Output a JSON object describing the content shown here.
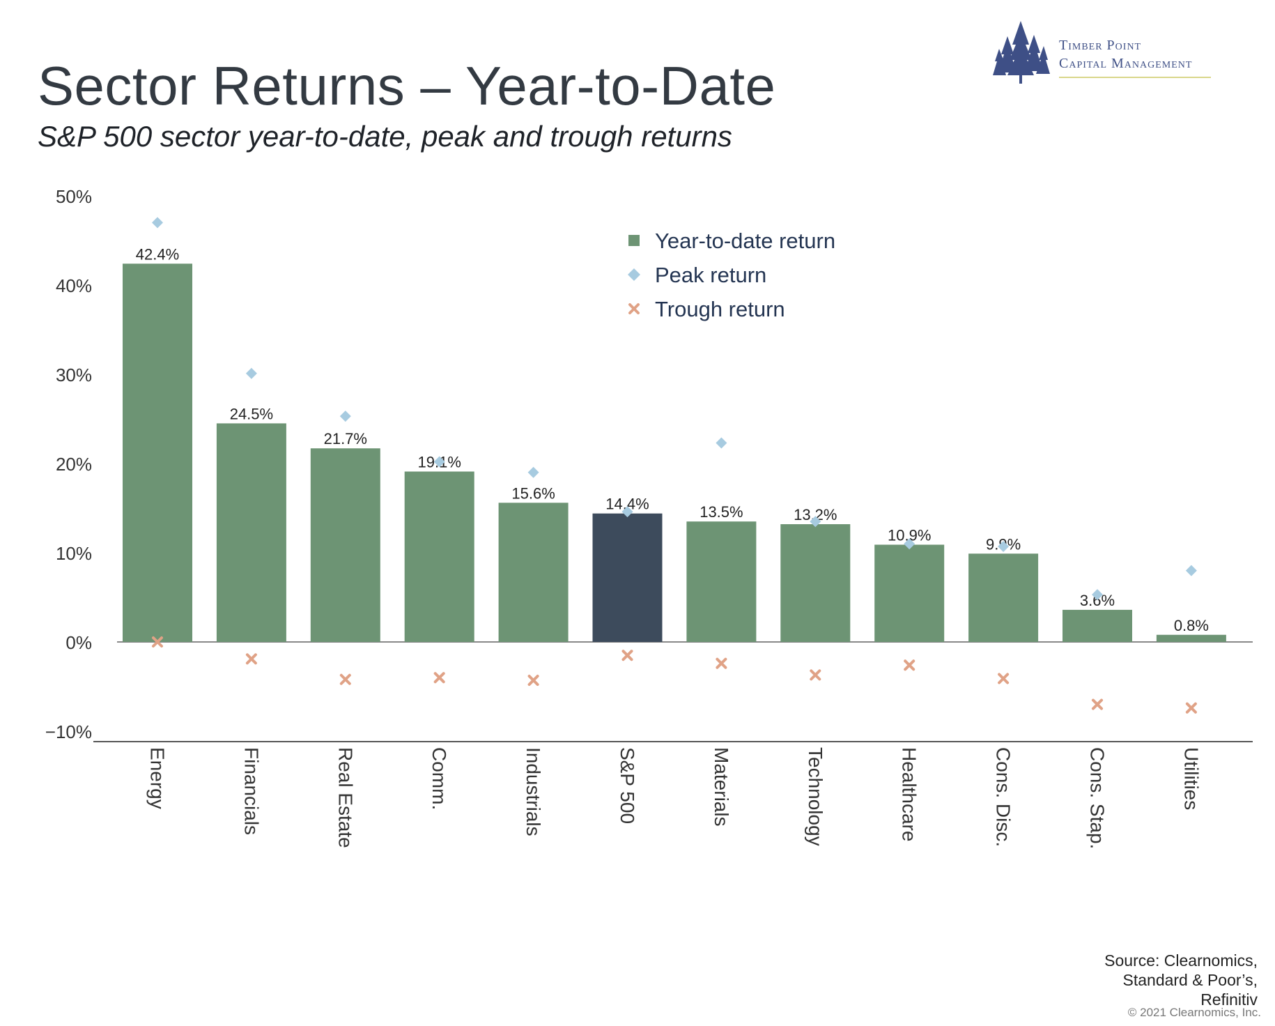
{
  "header": {
    "title": "Sector Returns – Year-to-Date",
    "subtitle": "S&P 500 sector year-to-date, peak and trough returns"
  },
  "logo": {
    "line1": "Timber Point",
    "line2": "Capital Management",
    "icon": "pine-trees-icon",
    "color": "#3e4f86"
  },
  "footer": {
    "source_line1": "Source: Clearnomics,",
    "source_line2": "Standard & Poor’s,",
    "source_line3": "Refinitiv",
    "copyright": "© 2021 Clearnomics, Inc."
  },
  "chart_data": {
    "type": "bar",
    "categories": [
      "Energy",
      "Financials",
      "Real Estate",
      "Comm.",
      "Industrials",
      "S&P 500",
      "Materials",
      "Technology",
      "Healthcare",
      "Cons. Disc.",
      "Cons. Stap.",
      "Utilities"
    ],
    "series": [
      {
        "name": "Year-to-date return",
        "type": "bar",
        "values": [
          42.4,
          24.5,
          21.7,
          19.1,
          15.6,
          14.4,
          13.5,
          13.2,
          10.9,
          9.9,
          3.6,
          0.8
        ],
        "color": "#6d9474",
        "highlight_color": "#3d4b5c",
        "highlight_category": "S&P 500"
      },
      {
        "name": "Peak return",
        "type": "marker-diamond",
        "values": [
          47.0,
          30.1,
          25.3,
          20.2,
          19.0,
          14.6,
          22.3,
          13.5,
          11.0,
          10.7,
          5.3,
          8.0
        ],
        "color": "#a7cbe0"
      },
      {
        "name": "Trough return",
        "type": "marker-x",
        "values": [
          0.0,
          -1.9,
          -4.2,
          -4.0,
          -4.3,
          -1.5,
          -2.4,
          -3.7,
          -2.6,
          -4.1,
          -7.0,
          -7.4
        ],
        "color": "#e0a286"
      }
    ],
    "data_labels": [
      "42.4%",
      "24.5%",
      "21.7%",
      "19.1%",
      "15.6%",
      "14.4%",
      "13.5%",
      "13.2%",
      "10.9%",
      "9.9%",
      "3.6%",
      "0.8%"
    ],
    "y_ticks": [
      50,
      40,
      30,
      20,
      10,
      0,
      -10
    ],
    "y_tick_labels": [
      "50%",
      "40%",
      "30%",
      "20%",
      "10%",
      "0%",
      "−10%"
    ],
    "ylim": [
      -11,
      50
    ],
    "xlabel": "",
    "ylabel": "",
    "grid": false,
    "legend_position": "top-center",
    "colors": {
      "axis": "#888888",
      "tick_text": "#333333",
      "label_text": "#222222",
      "legend_text": "#243552"
    }
  }
}
